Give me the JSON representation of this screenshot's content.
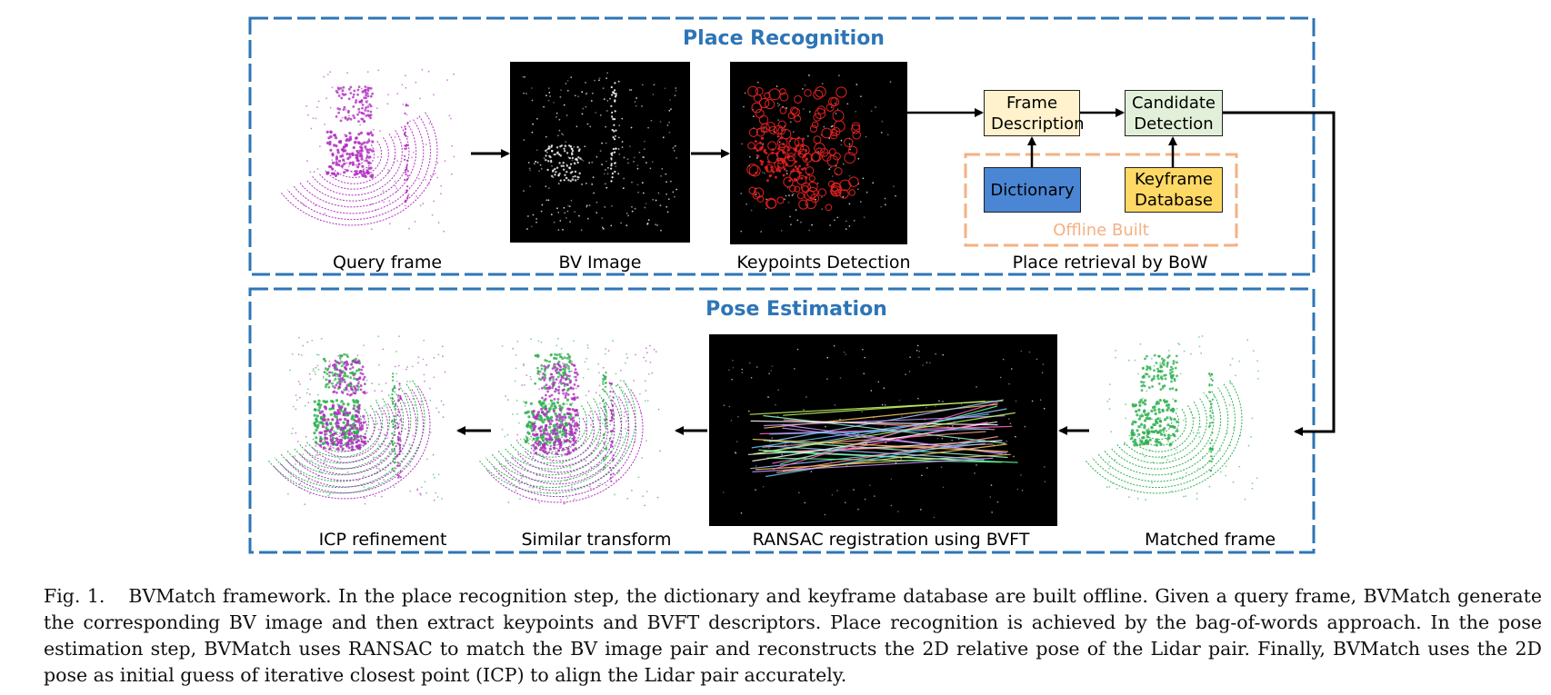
{
  "place_recognition": {
    "title": "Place Recognition",
    "panels": {
      "query_frame": "Query frame",
      "bv_image": "BV Image",
      "keypoints": "Keypoints Detection",
      "retrieval": "Place retrieval by BoW"
    },
    "boxes": {
      "frame_description": "Frame Description",
      "candidate_detection": "Candidate Detection",
      "dictionary": "Dictionary",
      "keyframe_database": "Keyframe Database",
      "offline_built": "Offline Built"
    }
  },
  "pose_estimation": {
    "title": "Pose Estimation",
    "panels": {
      "icp": "ICP refinement",
      "similar": "Similar transform",
      "ransac": "RANSAC registration using BVFT",
      "matched": "Matched frame"
    }
  },
  "caption": {
    "label": "Fig. 1.",
    "text": "BVMatch framework. In the place recognition step, the dictionary and keyframe database are built offline. Given a query frame, BVMatch generate the corresponding BV image and then extract keypoints and BVFT descriptors. Place recognition is achieved by the bag-of-words approach. In the pose estimation step, BVMatch uses RANSAC to match the BV image pair and reconstructs the 2D relative pose of the Lidar pair. Finally, BVMatch uses the 2D pose as initial guess of iterative closest point (ICP) to align the Lidar pair accurately."
  },
  "colors": {
    "section_border": "#2e75b6",
    "offline_border": "#f4b183",
    "frame_description_fill": "#fff2cc",
    "candidate_fill": "#e2f0d9",
    "dictionary_fill": "#4a86d4",
    "keyframe_fill": "#ffd966",
    "query_points": "#b030c0",
    "matched_points": "#2fb050",
    "keypoint_circles": "#e02020"
  }
}
